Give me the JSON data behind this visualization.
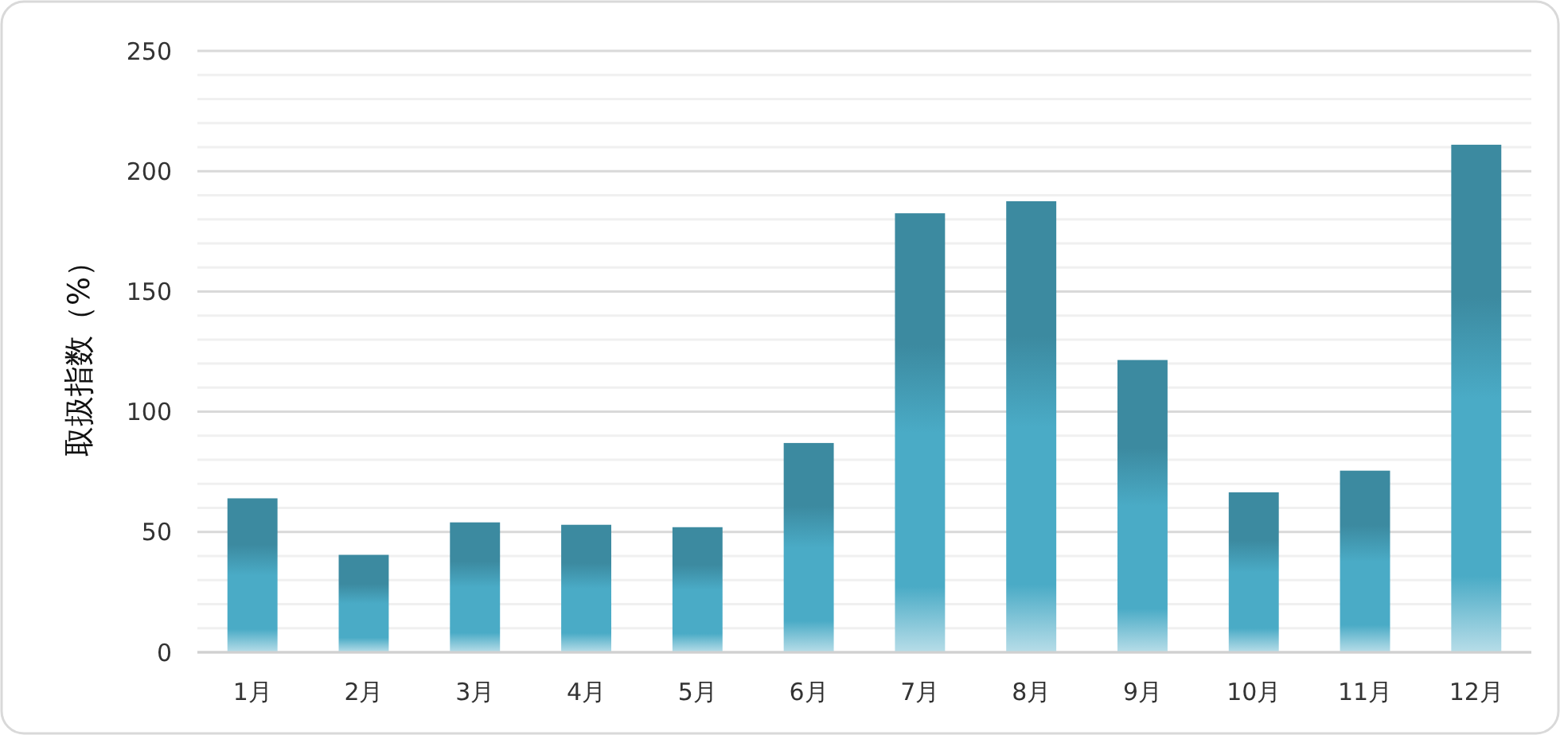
{
  "chart_data": {
    "type": "bar",
    "ylabel": "取扱指数（%）",
    "categories": [
      "1月",
      "2月",
      "3月",
      "4月",
      "5月",
      "6月",
      "7月",
      "8月",
      "9月",
      "10月",
      "11月",
      "12月"
    ],
    "values": [
      64,
      40.5,
      54,
      53,
      52,
      87,
      182.5,
      187.5,
      121.5,
      66.5,
      75.5,
      211
    ],
    "color": "#4aabc6",
    "ylim": [
      0,
      250
    ],
    "yticks": [
      0,
      {
        "value": 10,
        "label": null
      },
      {
        "value": 20,
        "label": null
      },
      {
        "value": 30,
        "label": null
      },
      {
        "value": 40,
        "label": null
      },
      50,
      {
        "value": 60,
        "label": null
      },
      {
        "value": 70,
        "label": null
      },
      {
        "value": 80,
        "label": null
      },
      {
        "value": 90,
        "label": null
      },
      100,
      {
        "value": 110,
        "label": null
      },
      {
        "value": 120,
        "label": null
      },
      {
        "value": 130,
        "label": null
      },
      {
        "value": 140,
        "label": null
      },
      150,
      {
        "value": 160,
        "label": null
      },
      {
        "value": 170,
        "label": null
      },
      {
        "value": 180,
        "label": null
      },
      {
        "value": 190,
        "label": null
      },
      200,
      {
        "value": 210,
        "label": null
      },
      {
        "value": 220,
        "label": null
      },
      {
        "value": 230,
        "label": null
      },
      {
        "value": 240,
        "label": null
      },
      250
    ],
    "grid": true
  }
}
